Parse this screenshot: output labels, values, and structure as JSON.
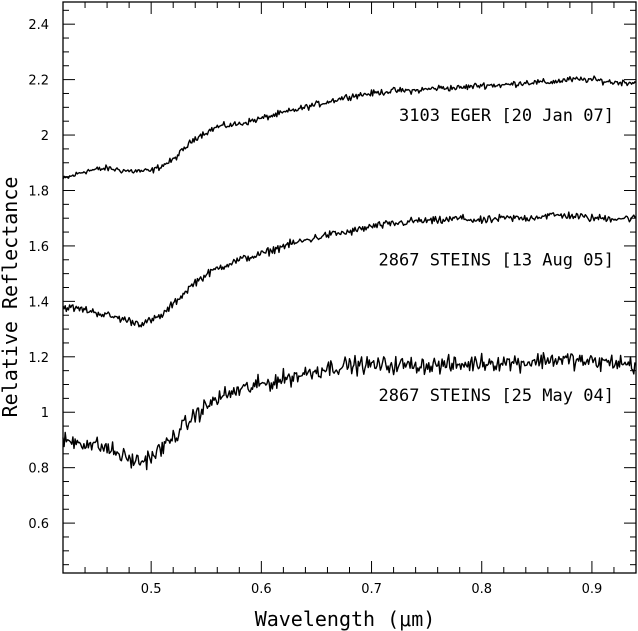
{
  "chart_data": {
    "type": "line",
    "title": "",
    "xlabel": "Wavelength (μm)",
    "ylabel": "Relative Reflectance",
    "xlim": [
      0.42,
      0.94
    ],
    "ylim": [
      0.42,
      2.48
    ],
    "x_major_ticks": [
      0.5,
      0.6,
      0.7,
      0.8,
      0.9
    ],
    "x_tick_labels": [
      "0.5",
      "0.6",
      "0.7",
      "0.8",
      "0.9"
    ],
    "y_major_ticks": [
      0.6,
      0.8,
      1.0,
      1.2,
      1.4,
      1.6,
      1.8,
      2.0,
      2.2,
      2.4
    ],
    "y_tick_labels": [
      "0.6",
      "0.8",
      "1",
      "1.2",
      "1.4",
      "1.6",
      "1.8",
      "2",
      "2.2",
      "2.4"
    ],
    "grid": false,
    "legend": "none",
    "line_color": "#000000",
    "series": [
      {
        "name": "3103 EGER [20 Jan 07]",
        "noise": 0.008,
        "x": [
          0.42,
          0.44,
          0.46,
          0.48,
          0.5,
          0.51,
          0.52,
          0.53,
          0.54,
          0.56,
          0.58,
          0.6,
          0.62,
          0.64,
          0.66,
          0.68,
          0.7,
          0.72,
          0.74,
          0.76,
          0.78,
          0.8,
          0.82,
          0.84,
          0.86,
          0.88,
          0.9,
          0.92,
          0.94
        ],
        "values": [
          1.84,
          1.87,
          1.88,
          1.87,
          1.87,
          1.89,
          1.91,
          1.95,
          1.99,
          2.03,
          2.04,
          2.06,
          2.08,
          2.1,
          2.12,
          2.14,
          2.15,
          2.16,
          2.16,
          2.17,
          2.17,
          2.18,
          2.18,
          2.19,
          2.19,
          2.2,
          2.2,
          2.19,
          2.19
        ]
      },
      {
        "name": "2867 STEINS  [13 Aug 05]",
        "noise": 0.01,
        "x": [
          0.42,
          0.44,
          0.46,
          0.48,
          0.49,
          0.5,
          0.51,
          0.52,
          0.53,
          0.54,
          0.56,
          0.58,
          0.6,
          0.62,
          0.64,
          0.66,
          0.68,
          0.7,
          0.72,
          0.74,
          0.76,
          0.78,
          0.8,
          0.82,
          0.84,
          0.86,
          0.88,
          0.9,
          0.92,
          0.94
        ],
        "values": [
          1.38,
          1.37,
          1.35,
          1.33,
          1.32,
          1.33,
          1.35,
          1.39,
          1.43,
          1.47,
          1.52,
          1.55,
          1.57,
          1.6,
          1.62,
          1.64,
          1.65,
          1.67,
          1.68,
          1.69,
          1.69,
          1.7,
          1.69,
          1.7,
          1.7,
          1.71,
          1.71,
          1.7,
          1.7,
          1.7
        ]
      },
      {
        "name": "2867 STEINS [25 May 04]",
        "noise": 0.022,
        "x": [
          0.42,
          0.44,
          0.46,
          0.48,
          0.49,
          0.5,
          0.51,
          0.52,
          0.53,
          0.54,
          0.56,
          0.58,
          0.6,
          0.62,
          0.64,
          0.66,
          0.68,
          0.7,
          0.72,
          0.74,
          0.76,
          0.78,
          0.8,
          0.82,
          0.84,
          0.86,
          0.88,
          0.9,
          0.92,
          0.94
        ],
        "values": [
          0.9,
          0.89,
          0.87,
          0.83,
          0.82,
          0.84,
          0.87,
          0.91,
          0.95,
          0.99,
          1.05,
          1.08,
          1.1,
          1.12,
          1.14,
          1.16,
          1.17,
          1.17,
          1.17,
          1.17,
          1.17,
          1.17,
          1.18,
          1.18,
          1.18,
          1.19,
          1.19,
          1.18,
          1.18,
          1.17
        ]
      }
    ],
    "annotations": [
      {
        "text": "3103 EGER [20 Jan 07]",
        "x": 0.92,
        "y": 2.05
      },
      {
        "text": "2867 STEINS  [13 Aug 05]",
        "x": 0.92,
        "y": 1.53
      },
      {
        "text": "2867 STEINS [25 May 04]",
        "x": 0.92,
        "y": 1.04
      }
    ]
  }
}
